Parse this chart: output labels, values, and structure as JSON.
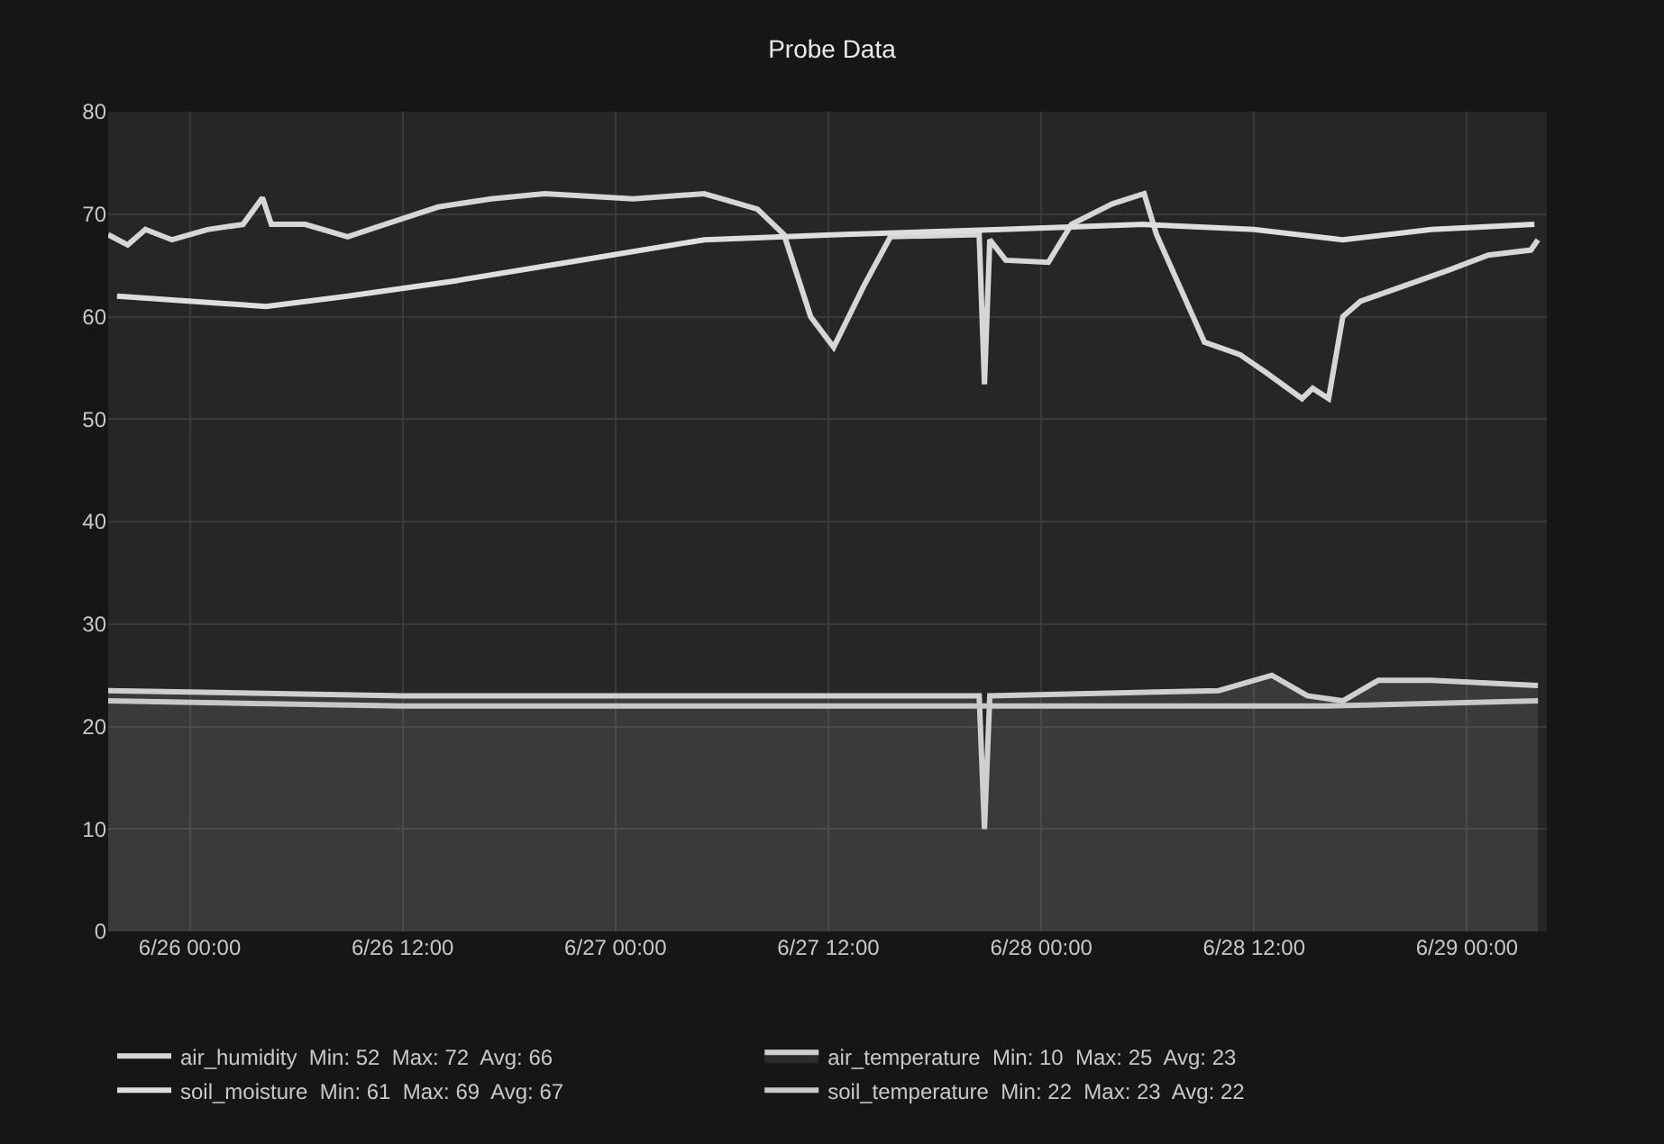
{
  "chart_data": {
    "type": "line",
    "title": "Probe Data",
    "xlim": [
      "--06-25T19:24",
      "--06-29T04:30"
    ],
    "xticks": [
      {
        "value": "--06-26T00:00",
        "label": "6/26 00:00"
      },
      {
        "value": "--06-26T12:00",
        "label": "6/26 12:00"
      },
      {
        "value": "--06-27T00:00",
        "label": "6/27 00:00"
      },
      {
        "value": "--06-27T12:00",
        "label": "6/27 12:00"
      },
      {
        "value": "--06-28T00:00",
        "label": "6/28 00:00"
      },
      {
        "value": "--06-28T12:00",
        "label": "6/28 12:00"
      },
      {
        "value": "--06-29T00:00",
        "label": "6/29 00:00"
      }
    ],
    "ylim": [
      0,
      80
    ],
    "yticks": [
      0,
      10,
      20,
      30,
      40,
      50,
      60,
      70,
      80
    ],
    "grid": true,
    "legend": "bottom",
    "line_style": "solid",
    "marker": "none",
    "series": [
      {
        "name": "air_humidity  Min: 52  Max: 72  Avg: 66",
        "color": "#d6d6d6",
        "x": [
          "--06-25T19:24",
          "--06-25T20:30",
          "--06-25T21:30",
          "--06-25T23:00",
          "--06-26T01:00",
          "--06-26T03:00",
          "--06-26T04:06",
          "--06-26T04:36",
          "--06-26T06:30",
          "--06-26T08:54",
          "--06-26T11:00",
          "--06-26T14:00",
          "--06-26T17:00",
          "--06-26T20:00",
          "--06-27T01:00",
          "--06-27T05:00",
          "--06-27T08:00",
          "--06-27T09:30",
          "--06-27T11:00",
          "--06-27T12:18",
          "--06-27T14:00",
          "--06-27T15:30",
          "--06-27T20:30",
          "--06-27T20:48",
          "--06-27T21:06",
          "--06-27T22:00",
          "--06-28T00:24",
          "--06-28T01:42",
          "--06-28T04:00",
          "--06-28T05:48",
          "--06-28T06:30",
          "--06-28T09:12",
          "--06-28T11:12",
          "--06-28T12:42",
          "--06-28T14:42",
          "--06-28T15:18",
          "--06-28T16:12",
          "--06-28T17:00",
          "--06-28T18:00",
          "--06-28T22:54",
          "--06-29T01:12",
          "--06-29T03:36",
          "--06-29T04:00"
        ],
        "values": [
          68,
          67,
          68.5,
          67.5,
          68.5,
          69,
          71.6,
          69,
          69,
          67.8,
          69,
          70.7,
          71.5,
          72,
          71.5,
          72,
          70.5,
          68,
          60,
          57,
          63,
          67.8,
          68,
          53.4,
          67.5,
          65.5,
          65.3,
          69,
          71,
          72,
          68,
          57.5,
          56.3,
          54.5,
          52,
          53,
          52,
          60,
          61.5,
          64.5,
          66,
          66.5,
          67.5
        ]
      },
      {
        "name": "air_temperature  Min: 10  Max: 25  Avg: 23",
        "type": "area",
        "color": "#cfcfcf",
        "x": [
          "--06-25T19:24",
          "--06-26T12:00",
          "--06-27T06:00",
          "--06-27T20:30",
          "--06-27T20:48",
          "--06-27T21:06",
          "--06-28T10:00",
          "--06-28T13:00",
          "--06-28T15:00",
          "--06-28T17:00",
          "--06-28T19:00",
          "--06-28T22:00",
          "--06-29T04:00"
        ],
        "values": [
          23.5,
          23,
          23,
          23,
          10,
          23,
          23.5,
          25,
          23,
          22.5,
          24.5,
          24.5,
          24
        ]
      },
      {
        "name": "soil_moisture  Min: 61  Max: 69  Avg: 67",
        "color": "#dedede",
        "x": [
          "--06-25T19:54",
          "--06-26T04:18",
          "--06-26T08:54",
          "--06-26T15:00",
          "--06-26T22:00",
          "--06-27T05:00",
          "--06-27T12:30",
          "--06-27T21:42",
          "--06-28T05:48",
          "--06-28T12:00",
          "--06-28T17:00",
          "--06-28T22:00",
          "--06-29T03:48"
        ],
        "values": [
          62,
          61,
          62,
          63.5,
          65.5,
          67.5,
          68,
          68.5,
          69,
          68.5,
          67.5,
          68.5,
          69
        ]
      },
      {
        "name": "soil_temperature  Min: 22  Max: 23  Avg: 22",
        "color": "#c8c8c8",
        "x": [
          "--06-25T19:24",
          "--06-26T12:00",
          "--06-27T12:00",
          "--06-28T12:00",
          "--06-28T16:00",
          "--06-29T04:00"
        ],
        "values": [
          22.5,
          22,
          22,
          22,
          22,
          22.5
        ]
      }
    ]
  }
}
